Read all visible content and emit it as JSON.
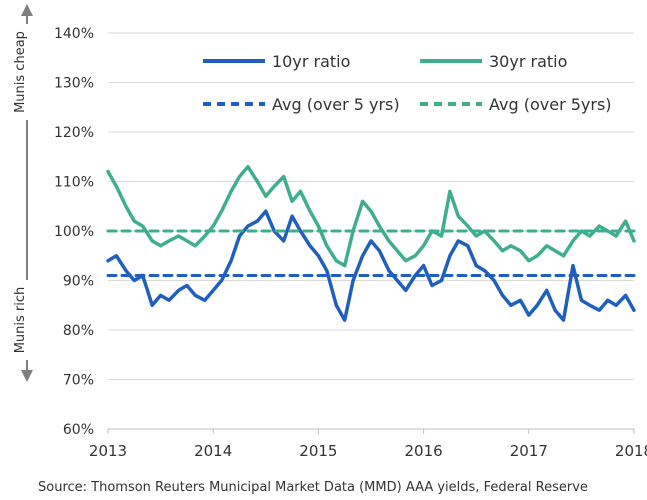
{
  "chart_data": {
    "type": "line",
    "title": "",
    "xlabel": "",
    "ylabel_top": "Munis cheap",
    "ylabel_bottom": "Munis rich",
    "x_ticks": [
      "2013",
      "2014",
      "2015",
      "2016",
      "2017",
      "2018"
    ],
    "y_ticks": [
      "140%",
      "130%",
      "120%",
      "110%",
      "100%",
      "90%",
      "80%",
      "70%",
      "60%"
    ],
    "xlim": [
      2013.0,
      2018.0
    ],
    "ylim": [
      60,
      140
    ],
    "grid": "horizontal",
    "legend_position": "top-right",
    "colors": {
      "ratio_10yr": "#1f5fbf",
      "ratio_30yr": "#3fae8f"
    },
    "series": [
      {
        "name": "10yr ratio",
        "style": "solid",
        "x": [
          2013.0,
          2013.08,
          2013.17,
          2013.25,
          2013.33,
          2013.42,
          2013.5,
          2013.58,
          2013.67,
          2013.75,
          2013.83,
          2013.92,
          2014.0,
          2014.08,
          2014.17,
          2014.25,
          2014.33,
          2014.42,
          2014.5,
          2014.58,
          2014.67,
          2014.75,
          2014.83,
          2014.92,
          2015.0,
          2015.08,
          2015.17,
          2015.25,
          2015.33,
          2015.42,
          2015.5,
          2015.58,
          2015.67,
          2015.75,
          2015.83,
          2015.92,
          2016.0,
          2016.08,
          2016.17,
          2016.25,
          2016.33,
          2016.42,
          2016.5,
          2016.58,
          2016.67,
          2016.75,
          2016.83,
          2016.92,
          2017.0,
          2017.08,
          2017.17,
          2017.25,
          2017.33,
          2017.42,
          2017.5,
          2017.58,
          2017.67,
          2017.75,
          2017.83,
          2017.92,
          2018.0
        ],
        "y": [
          94,
          95,
          92,
          90,
          91,
          85,
          87,
          86,
          88,
          89,
          87,
          86,
          88,
          90,
          94,
          99,
          101,
          102,
          104,
          100,
          98,
          103,
          100,
          97,
          95,
          92,
          85,
          82,
          90,
          95,
          98,
          96,
          92,
          90,
          88,
          91,
          93,
          89,
          90,
          95,
          98,
          97,
          93,
          92,
          90,
          87,
          85,
          86,
          83,
          85,
          88,
          84,
          82,
          93,
          86,
          85,
          84,
          86,
          85,
          87,
          84
        ]
      },
      {
        "name": "30yr ratio",
        "style": "solid",
        "x": [
          2013.0,
          2013.08,
          2013.17,
          2013.25,
          2013.33,
          2013.42,
          2013.5,
          2013.58,
          2013.67,
          2013.75,
          2013.83,
          2013.92,
          2014.0,
          2014.08,
          2014.17,
          2014.25,
          2014.33,
          2014.42,
          2014.5,
          2014.58,
          2014.67,
          2014.75,
          2014.83,
          2014.92,
          2015.0,
          2015.08,
          2015.17,
          2015.25,
          2015.33,
          2015.42,
          2015.5,
          2015.58,
          2015.67,
          2015.75,
          2015.83,
          2015.92,
          2016.0,
          2016.08,
          2016.17,
          2016.25,
          2016.33,
          2016.42,
          2016.5,
          2016.58,
          2016.67,
          2016.75,
          2016.83,
          2016.92,
          2017.0,
          2017.08,
          2017.17,
          2017.25,
          2017.33,
          2017.42,
          2017.5,
          2017.58,
          2017.67,
          2017.75,
          2017.83,
          2017.92,
          2018.0
        ],
        "y": [
          112,
          109,
          105,
          102,
          101,
          98,
          97,
          98,
          99,
          98,
          97,
          99,
          101,
          104,
          108,
          111,
          113,
          110,
          107,
          109,
          111,
          106,
          108,
          104,
          101,
          97,
          94,
          93,
          100,
          106,
          104,
          101,
          98,
          96,
          94,
          95,
          97,
          100,
          99,
          108,
          103,
          101,
          99,
          100,
          98,
          96,
          97,
          96,
          94,
          95,
          97,
          96,
          95,
          98,
          100,
          99,
          101,
          100,
          99,
          102,
          98
        ]
      },
      {
        "name": "Avg (over 5 yrs)",
        "style": "dashed",
        "x": [
          2013.0,
          2018.0
        ],
        "y": [
          91,
          91
        ]
      },
      {
        "name": "Avg (over 5yrs)",
        "style": "dashed",
        "x": [
          2013.0,
          2018.0
        ],
        "y": [
          100,
          100
        ]
      }
    ],
    "source": "Source: Thomson Reuters Municipal Market Data (MMD) AAA yields, Federal Reserve"
  }
}
